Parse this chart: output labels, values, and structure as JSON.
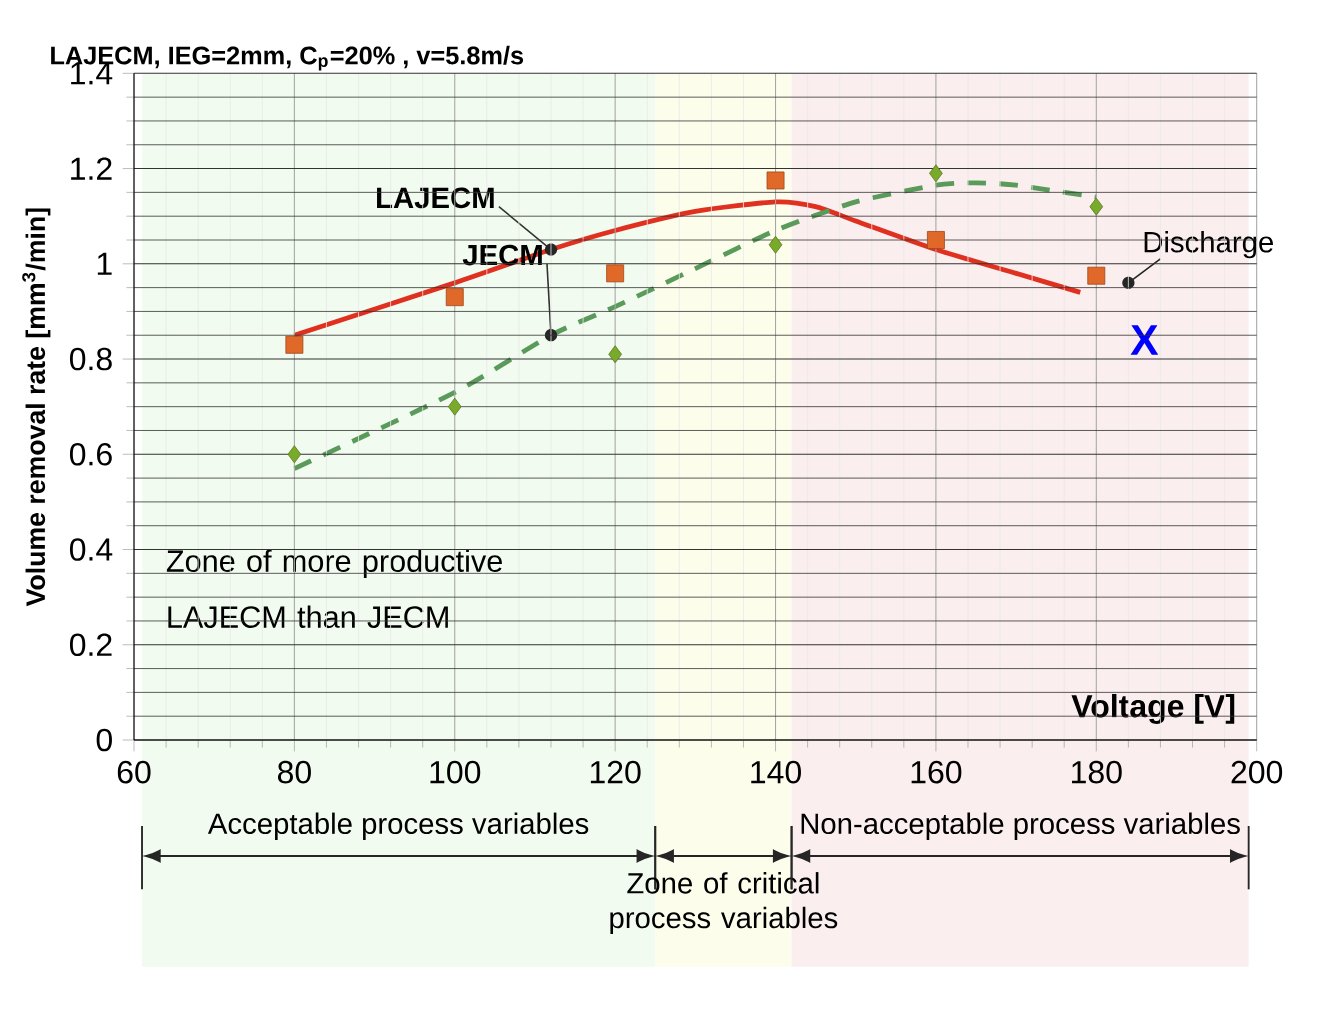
{
  "chart_data": {
    "type": "scatter",
    "title": "LAJECM, IEG=2mm, C$_{p}$=20% , v=5.8m/s",
    "xlabel": "Voltage [V]",
    "ylabel": "Volume removal rate [mm$^{3}$/min]",
    "xlim": [
      60,
      200
    ],
    "ylim": [
      0,
      1.4
    ],
    "xticks": [
      60,
      80,
      100,
      120,
      140,
      160,
      180,
      200
    ],
    "yticks": [
      0,
      0.2,
      0.4,
      0.6,
      0.8,
      1,
      1.2,
      1.4
    ],
    "grid": true,
    "series": [
      {
        "type": "line",
        "name": "LAJECM",
        "color": "#e03020",
        "line_style": "solid",
        "marker": "none",
        "x": [
          80,
          100,
          112,
          120,
          130,
          140,
          145,
          150,
          160,
          170,
          178
        ],
        "values": [
          0.85,
          0.96,
          1.03,
          1.07,
          1.11,
          1.13,
          1.12,
          1.09,
          1.03,
          0.98,
          0.94
        ]
      },
      {
        "type": "line",
        "name": "JECM",
        "color": "#5a9a5a",
        "line_style": "dashed",
        "marker": "none",
        "x": [
          80,
          100,
          112,
          120,
          130,
          140,
          150,
          160,
          165,
          170,
          180
        ],
        "values": [
          0.57,
          0.73,
          0.85,
          0.91,
          0.99,
          1.07,
          1.13,
          1.165,
          1.17,
          1.165,
          1.14
        ]
      },
      {
        "color": "#e06828",
        "marker": "square",
        "x": [
          80,
          100,
          120,
          140,
          160,
          180
        ],
        "values": [
          0.83,
          0.93,
          0.98,
          1.175,
          1.05,
          0.975
        ]
      },
      {
        "color": "#7aaa2a",
        "marker": "diamond",
        "x": [
          80,
          100,
          120,
          140,
          160,
          180
        ],
        "values": [
          0.6,
          0.7,
          0.81,
          1.04,
          1.19,
          1.12
        ]
      }
    ],
    "bands": [
      {
        "axis": "x",
        "from": 61,
        "to": 125,
        "label": "Acceptable process variables",
        "color": "#f2fbef"
      },
      {
        "axis": "x",
        "from": 125,
        "to": 142,
        "label": "Zone of critical process variables",
        "color": "#fdfdec"
      },
      {
        "axis": "x",
        "from": 142,
        "to": 199,
        "label": "Non-acceptable process variables",
        "color": "#fbeeee"
      }
    ],
    "annotations": [
      "Zone of more productive LAJECM than JECM",
      {
        "text": "Discharge",
        "x": 184,
        "y": 0.96
      },
      "X"
    ]
  }
}
